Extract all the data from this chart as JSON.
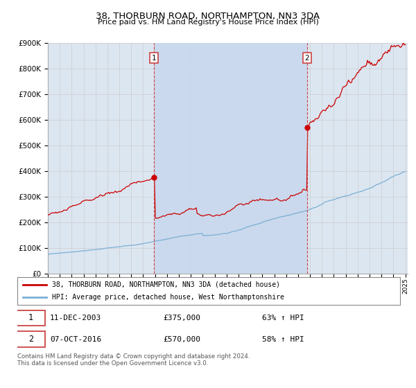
{
  "title": "38, THORBURN ROAD, NORTHAMPTON, NN3 3DA",
  "subtitle": "Price paid vs. HM Land Registry's House Price Index (HPI)",
  "ylim": [
    0,
    900000
  ],
  "x_start_year": 1995,
  "x_end_year": 2025,
  "sale1_date": "11-DEC-2003",
  "sale1_price": 375000,
  "sale1_label": "£375,000",
  "sale1_pct": "63% ↑ HPI",
  "sale2_date": "07-OCT-2016",
  "sale2_price": 570000,
  "sale2_label": "£570,000",
  "sale2_pct": "58% ↑ HPI",
  "red_line_color": "#cc0000",
  "blue_line_color": "#7aafd4",
  "dashed_color": "#cc4444",
  "grid_color": "#cccccc",
  "plot_bg_color": "#dce6f1",
  "shade_color": "#c8d8ed",
  "legend_label_red": "38, THORBURN ROAD, NORTHAMPTON, NN3 3DA (detached house)",
  "legend_label_blue": "HPI: Average price, detached house, West Northamptonshire",
  "footer": "Contains HM Land Registry data © Crown copyright and database right 2024.\nThis data is licensed under the Open Government Licence v3.0.",
  "sale1_x": 2003.917,
  "sale2_x": 2016.75
}
